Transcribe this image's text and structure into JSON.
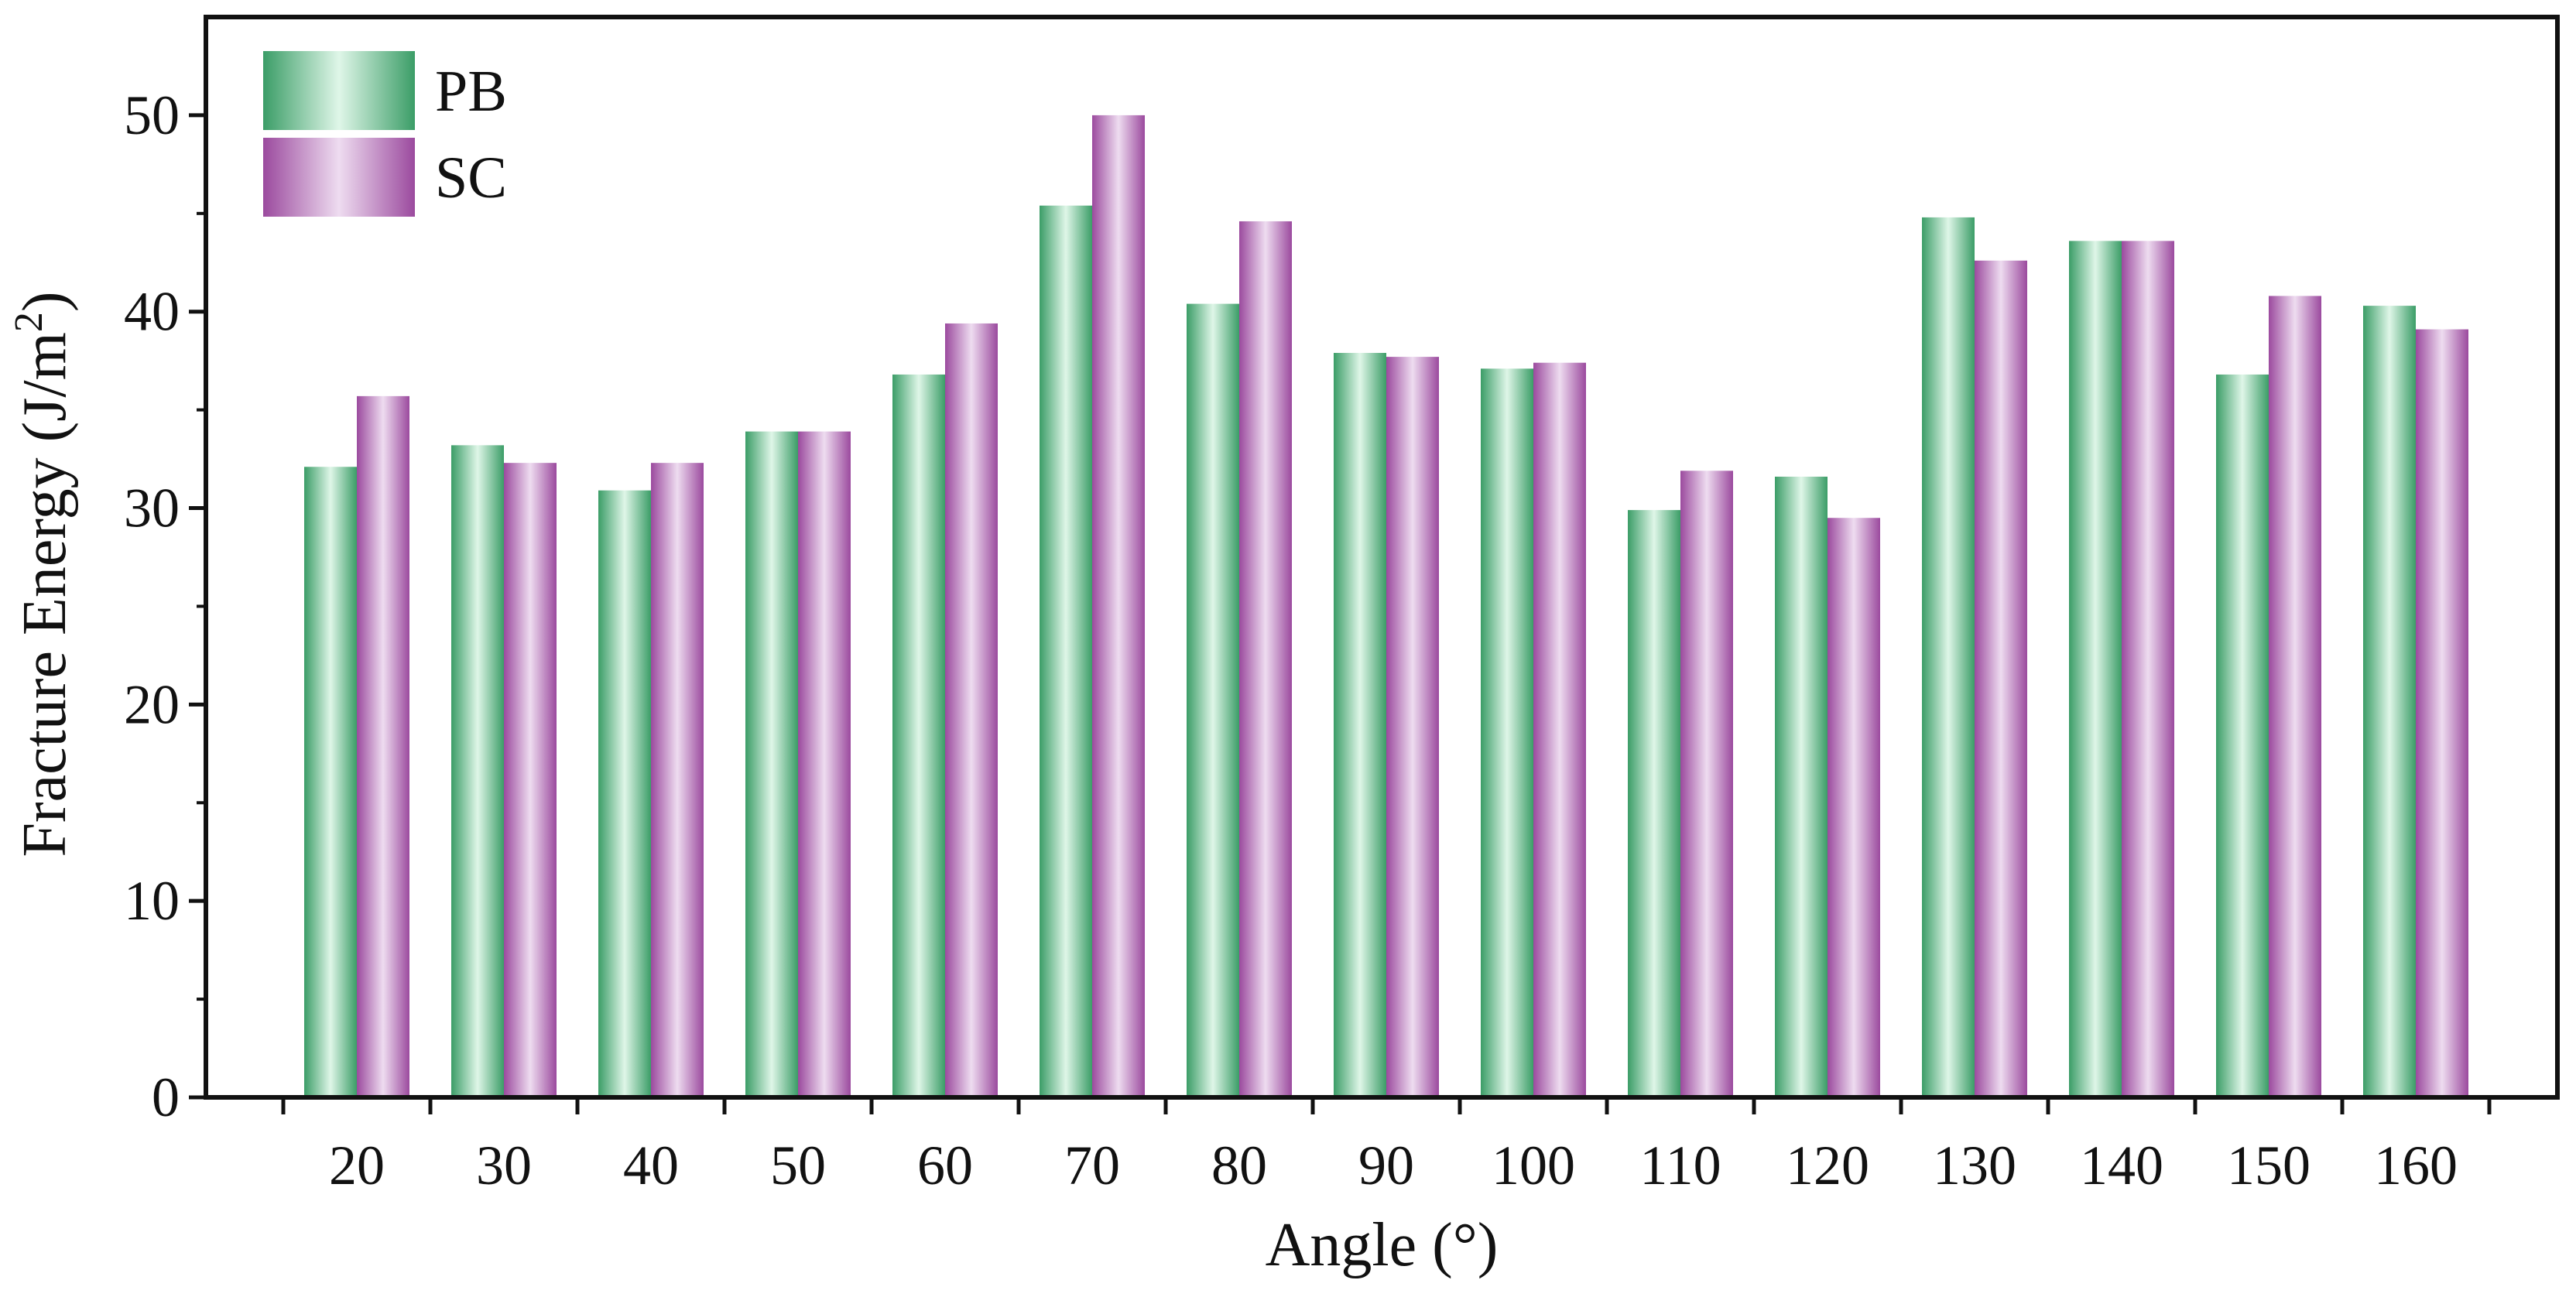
{
  "chart_data": {
    "type": "bar",
    "xlabel": "Angle (°)",
    "ylabel": {
      "main": "Fracture Energy (J/m",
      "sup": "2",
      "close": ")"
    },
    "categories": [
      "20",
      "30",
      "40",
      "50",
      "60",
      "70",
      "80",
      "90",
      "100",
      "110",
      "120",
      "130",
      "140",
      "150",
      "160"
    ],
    "series": [
      {
        "name": "PB",
        "values": [
          32.1,
          33.2,
          30.9,
          33.9,
          36.8,
          45.4,
          40.4,
          37.9,
          37.1,
          29.9,
          31.6,
          44.8,
          43.6,
          36.8,
          40.3
        ]
      },
      {
        "name": "SC",
        "values": [
          35.7,
          32.3,
          32.3,
          33.9,
          39.4,
          50.0,
          44.6,
          37.7,
          37.4,
          31.9,
          29.5,
          42.6,
          43.6,
          40.8,
          39.1
        ]
      }
    ],
    "ylim": [
      0,
      55
    ],
    "yticks": [
      "0",
      "10",
      "20",
      "30",
      "40",
      "50"
    ],
    "grid": false,
    "legend_position": "top-left",
    "colors": {
      "PB": {
        "edge": "#3b9d67",
        "mid": "#dff6e8"
      },
      "SC": {
        "edge": "#9b4a9e",
        "mid": "#eedcf0"
      },
      "axis": "#111111"
    }
  }
}
